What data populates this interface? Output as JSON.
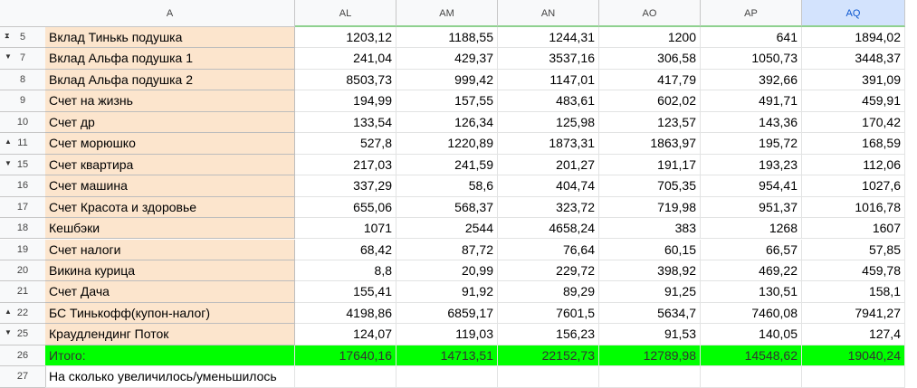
{
  "columns": [
    "A",
    "AL",
    "AM",
    "AN",
    "AO",
    "AP",
    "AQ"
  ],
  "rows": [
    {
      "number": "5",
      "cells": [
        "Вклад Тинькь подушка",
        "1203,12",
        "1188,55",
        "1244,31",
        "1200",
        "641",
        "1894,02"
      ]
    },
    {
      "number": "7",
      "cells": [
        "Вклад Альфа подушка 1",
        "241,04",
        "429,37",
        "3537,16",
        "306,58",
        "1050,73",
        "3448,37"
      ]
    },
    {
      "number": "8",
      "cells": [
        "Вклад Альфа подушка 2",
        "8503,73",
        "999,42",
        "1147,01",
        "417,79",
        "392,66",
        "391,09"
      ]
    },
    {
      "number": "9",
      "cells": [
        "Счет на жизнь",
        "194,99",
        "157,55",
        "483,61",
        "602,02",
        "491,71",
        "459,91"
      ]
    },
    {
      "number": "10",
      "cells": [
        "Счет  др",
        "133,54",
        "126,34",
        "125,98",
        "123,57",
        "143,36",
        "170,42"
      ]
    },
    {
      "number": "11",
      "cells": [
        "Счет морюшко",
        "527,8",
        "1220,89",
        "1873,31",
        "1863,97",
        "195,72",
        "168,59"
      ]
    },
    {
      "number": "15",
      "cells": [
        "Счет  квартира",
        "217,03",
        "241,59",
        "201,27",
        "191,17",
        "193,23",
        "112,06"
      ]
    },
    {
      "number": "16",
      "cells": [
        "Счет машина",
        "337,29",
        "58,6",
        "404,74",
        "705,35",
        "954,41",
        "1027,6"
      ]
    },
    {
      "number": "17",
      "cells": [
        "Счет  Красота и здоровье",
        "655,06",
        "568,37",
        "323,72",
        "719,98",
        "951,37",
        "1016,78"
      ]
    },
    {
      "number": "18",
      "cells": [
        "Кешбэки",
        "1071",
        "2544",
        "4658,24",
        "383",
        "1268",
        "1607"
      ]
    },
    {
      "number": "19",
      "cells": [
        "Счет налоги",
        "68,42",
        "87,72",
        "76,64",
        "60,15",
        "66,57",
        "57,85"
      ]
    },
    {
      "number": "20",
      "cells": [
        "Викина курица",
        "8,8",
        "20,99",
        "229,72",
        "398,92",
        "469,22",
        "459,78"
      ]
    },
    {
      "number": "21",
      "cells": [
        "Счет Дача",
        "155,41",
        "91,92",
        "89,29",
        "91,25",
        "130,51",
        "158,1"
      ]
    },
    {
      "number": "22",
      "cells": [
        "БС Тинькофф(купон-налог)",
        "4198,86",
        "6859,17",
        "7601,5",
        "5634,7",
        "7460,08",
        "7941,27"
      ]
    },
    {
      "number": "25",
      "cells": [
        "Краудлендинг Поток",
        "124,07",
        "119,03",
        "156,23",
        "91,53",
        "140,05",
        "127,4"
      ]
    },
    {
      "number": "26",
      "cells": [
        "Итого:",
        "17640,16",
        "14713,51",
        "22152,73",
        "12789,98",
        "14548,62",
        "19040,24"
      ]
    },
    {
      "number": "27",
      "cells": [
        "На сколько увеличилось/уменьшилось"
      ]
    }
  ]
}
